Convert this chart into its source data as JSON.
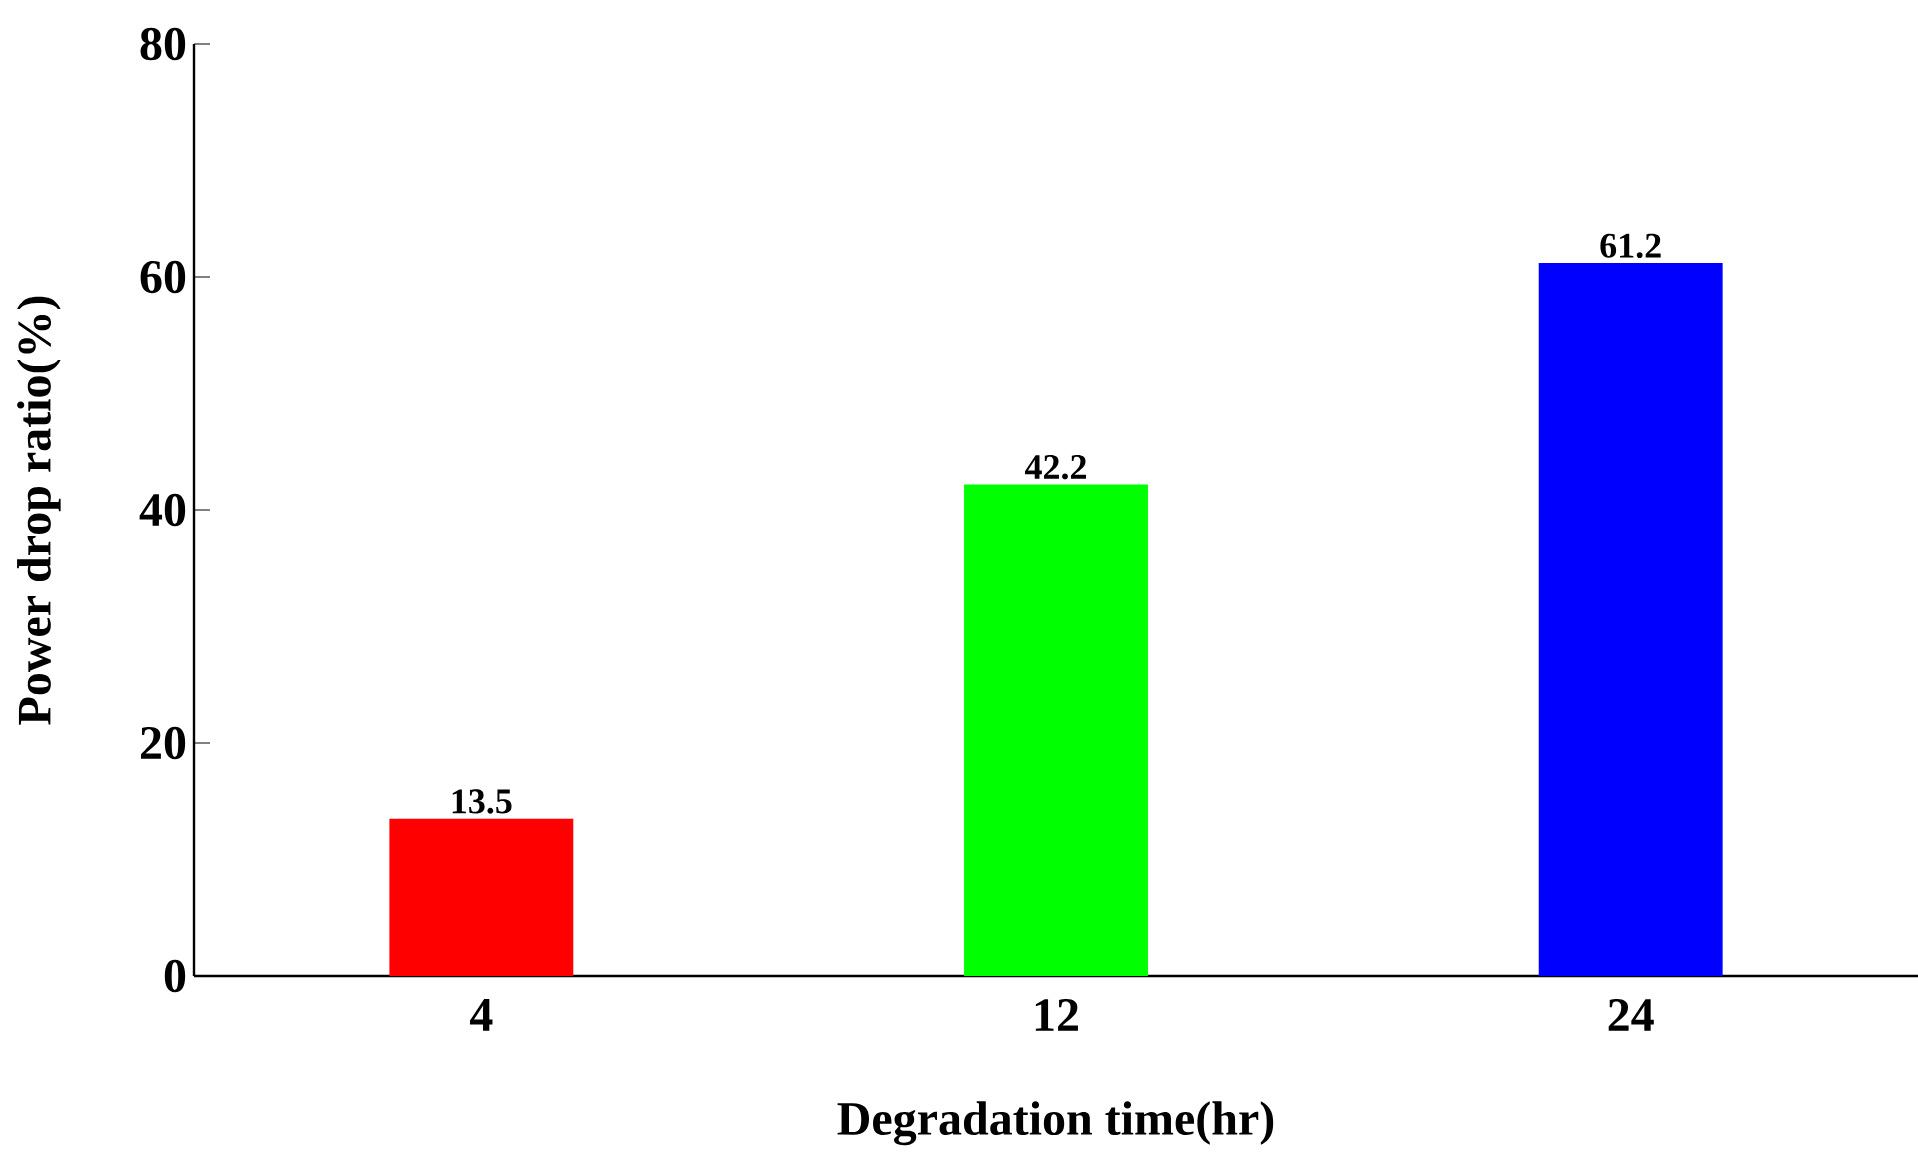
{
  "chart_data": {
    "type": "bar",
    "xlabel": "Degradation time(hr)",
    "ylabel": "Power drop ratio(%)",
    "categories": [
      "4",
      "12",
      "24"
    ],
    "values": [
      13.5,
      42.2,
      61.2
    ],
    "colors": [
      "#ff0000",
      "#00ff00",
      "#0000ff"
    ],
    "ylim": [
      0,
      80
    ],
    "yticks": [
      0,
      20,
      40,
      60,
      80
    ],
    "data_labels": true
  }
}
